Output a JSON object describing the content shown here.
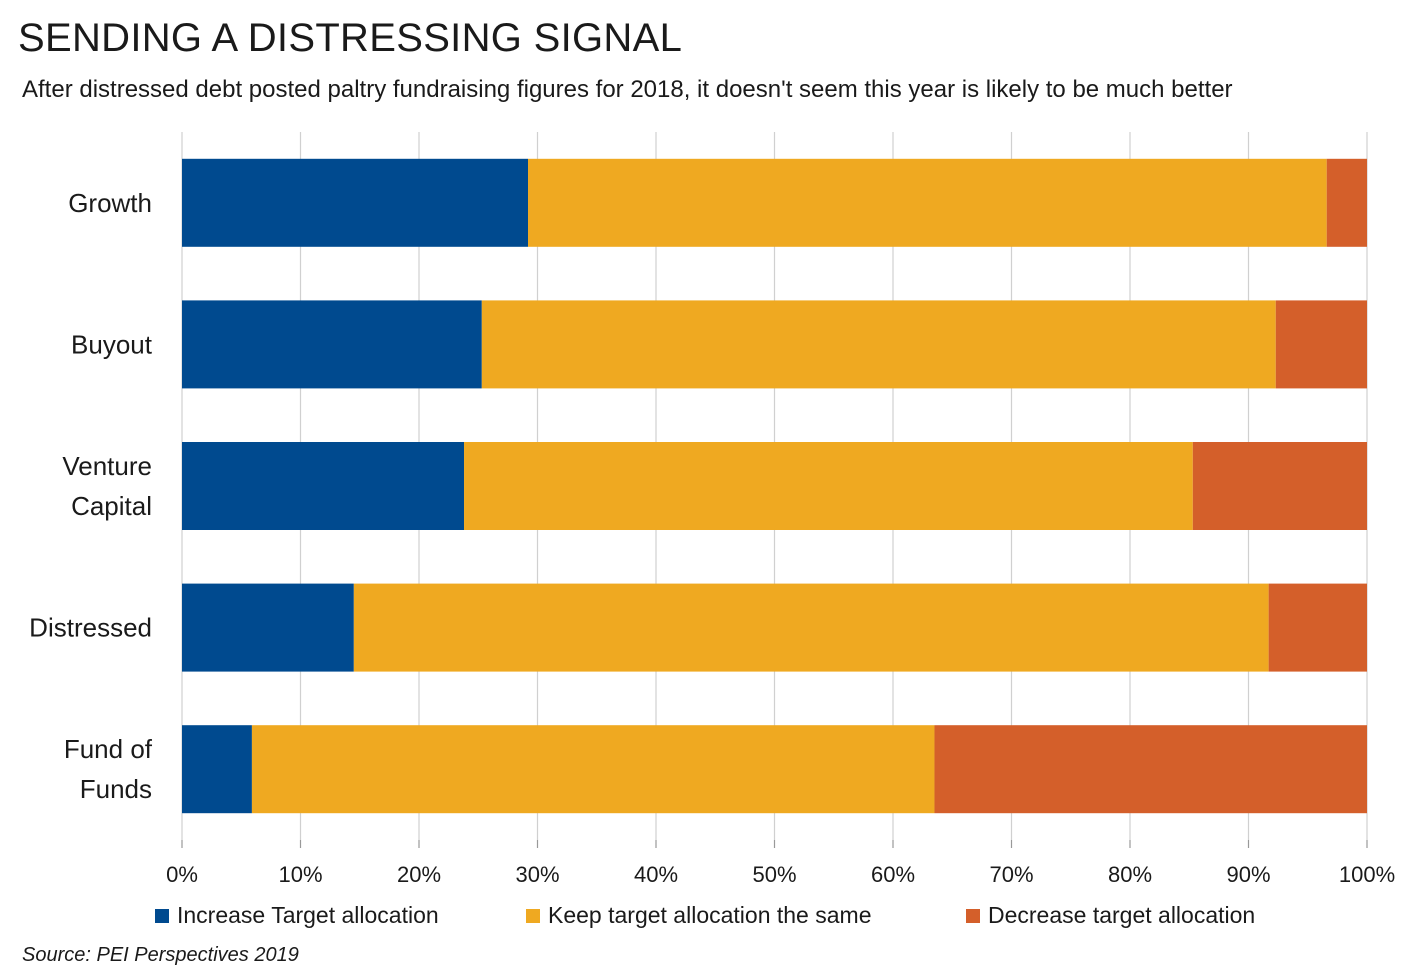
{
  "title": "SENDING A DISTRESSING SIGNAL",
  "subtitle": "After distressed debt posted paltry fundraising figures for 2018, it doesn't seem this year is likely to be much better",
  "source": "Source: PEI Perspectives 2019",
  "colors": {
    "increase": "#004a8f",
    "keep": "#efa921",
    "decrease": "#d45f2a",
    "grid": "#d0d0d0",
    "axis": "#999999"
  },
  "chart_data": {
    "type": "bar",
    "orientation": "horizontal",
    "stacked": "percent",
    "categories": [
      [
        "Growth"
      ],
      [
        "Buyout"
      ],
      [
        "Venture",
        "Capital"
      ],
      [
        "Distressed"
      ],
      [
        "Fund of",
        "Funds"
      ]
    ],
    "series": [
      {
        "name": "Increase Target allocation",
        "color_key": "increase",
        "values": [
          29.2,
          25.3,
          23.8,
          14.5,
          5.9
        ]
      },
      {
        "name": "Keep target allocation the same",
        "color_key": "keep",
        "values": [
          67.4,
          67.0,
          61.5,
          77.2,
          57.6
        ]
      },
      {
        "name": "Decrease target allocation",
        "color_key": "decrease",
        "values": [
          3.4,
          7.7,
          14.7,
          8.3,
          36.5
        ]
      }
    ],
    "xlim": [
      0,
      100
    ],
    "x_ticks": [
      "0%",
      "10%",
      "20%",
      "30%",
      "40%",
      "50%",
      "60%",
      "70%",
      "80%",
      "90%",
      "100%"
    ],
    "grid": true,
    "legend_position": "bottom"
  }
}
